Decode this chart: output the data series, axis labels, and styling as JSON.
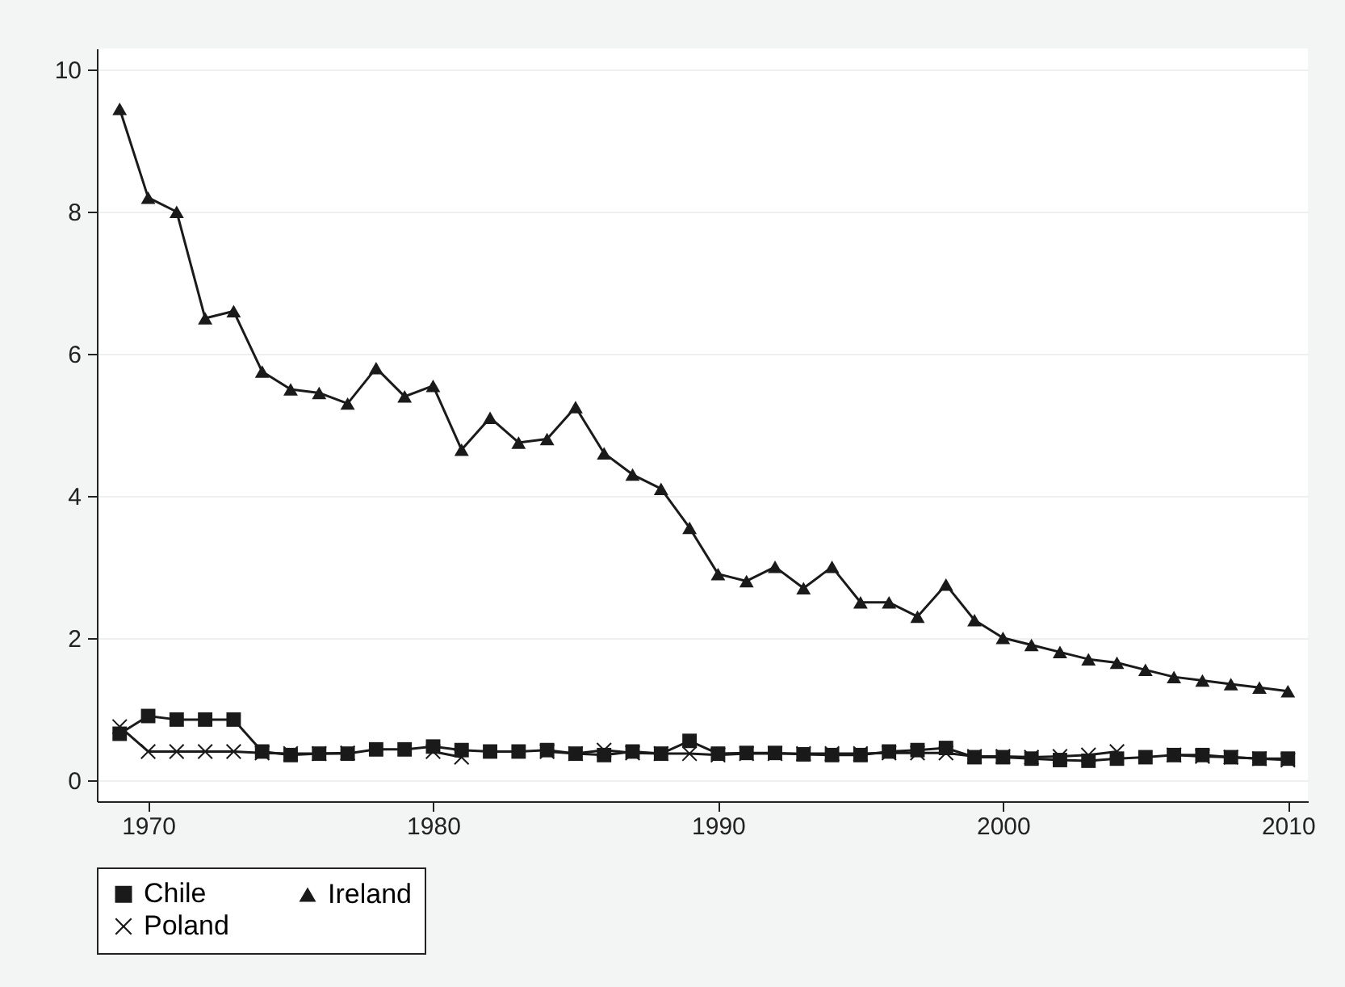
{
  "chart_data": {
    "type": "line",
    "x": [
      1969,
      1970,
      1971,
      1972,
      1973,
      1974,
      1975,
      1976,
      1977,
      1978,
      1979,
      1980,
      1981,
      1982,
      1983,
      1984,
      1985,
      1986,
      1987,
      1988,
      1989,
      1990,
      1991,
      1992,
      1993,
      1994,
      1995,
      1996,
      1997,
      1998,
      1999,
      2000,
      2001,
      2002,
      2003,
      2004,
      2005,
      2006,
      2007,
      2008,
      2009,
      2010
    ],
    "series": [
      {
        "name": "Chile",
        "color": "#1a1a1a",
        "marker": "square",
        "values": [
          0.65,
          0.9,
          0.85,
          0.85,
          0.85,
          0.4,
          0.35,
          0.37,
          0.37,
          0.43,
          0.43,
          0.47,
          0.42,
          0.4,
          0.4,
          0.42,
          0.37,
          0.35,
          0.4,
          0.37,
          0.55,
          0.37,
          0.38,
          0.38,
          0.36,
          0.35,
          0.35,
          0.4,
          0.42,
          0.45,
          0.32,
          0.32,
          0.3,
          0.28,
          0.27,
          0.3,
          0.32,
          0.35,
          0.35,
          0.32,
          0.3,
          0.3
        ]
      },
      {
        "name": "Ireland",
        "color": "#1a1a1a",
        "marker": "triangle",
        "values": [
          9.45,
          8.2,
          8.0,
          6.5,
          6.6,
          5.75,
          5.5,
          5.45,
          5.3,
          5.8,
          5.4,
          5.55,
          4.65,
          5.1,
          4.75,
          4.8,
          5.25,
          4.6,
          4.3,
          4.1,
          3.55,
          2.9,
          2.8,
          3.0,
          2.7,
          3.0,
          2.5,
          2.5,
          2.3,
          2.75,
          2.25,
          2.0,
          1.9,
          1.8,
          1.7,
          1.65,
          1.55,
          1.45,
          1.4,
          1.35,
          1.3,
          1.25
        ]
      },
      {
        "name": "Poland",
        "color": "#1a1a1a",
        "marker": "cross",
        "values": [
          0.75,
          0.4,
          0.4,
          0.4,
          0.4,
          0.38,
          0.37,
          0.37,
          0.38,
          null,
          null,
          0.4,
          0.32,
          null,
          null,
          0.4,
          0.37,
          0.42,
          0.38,
          0.37,
          0.37,
          0.35,
          0.37,
          0.37,
          0.37,
          0.37,
          0.37,
          0.38,
          0.38,
          0.38,
          0.33,
          0.33,
          0.32,
          0.33,
          0.35,
          0.4,
          null,
          0.35,
          0.33,
          0.32,
          0.3,
          0.28
        ]
      }
    ],
    "xlim": [
      1968.2,
      2010.7
    ],
    "xticks": [
      1970,
      1980,
      1990,
      2000,
      2010
    ],
    "ylim": [
      -0.3,
      10.3
    ],
    "yticks": [
      0,
      2,
      4,
      6,
      8,
      10
    ],
    "grid": "y",
    "legend": "bottom",
    "line_style": "solid"
  }
}
